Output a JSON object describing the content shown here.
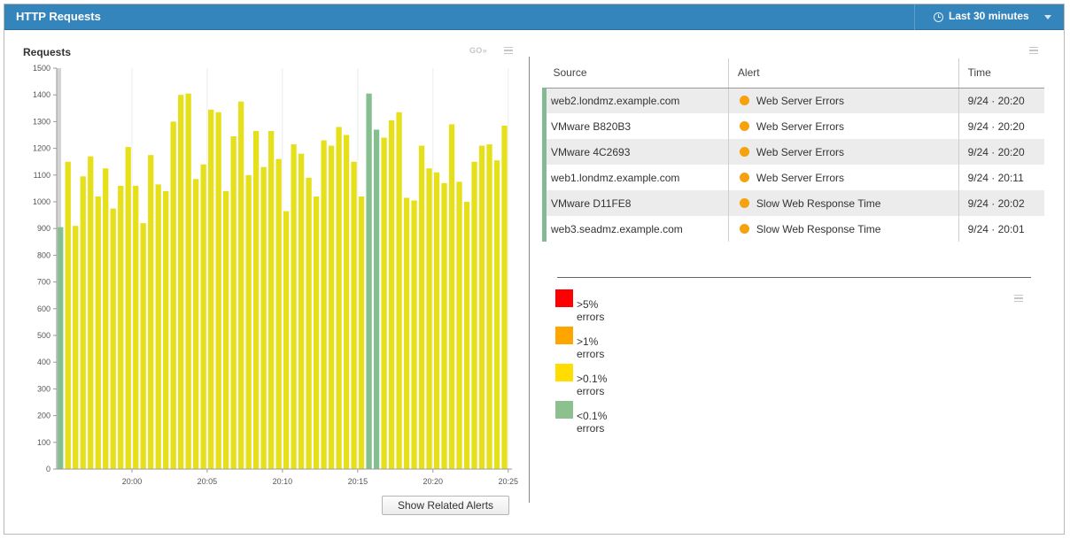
{
  "header": {
    "title": "HTTP Requests",
    "time_range": "Last 30 minutes",
    "clock_icon": "clock-icon",
    "caret_icon": "chevron-down-icon"
  },
  "chart_panel": {
    "title": "Requests",
    "go_label": "GO»",
    "related_alerts_button": "Show Related Alerts"
  },
  "chart_data": {
    "type": "bar",
    "title": "Requests",
    "xlabel": "",
    "ylabel": "",
    "ylim": [
      0,
      1500
    ],
    "y_ticks": [
      0,
      100,
      200,
      300,
      400,
      500,
      600,
      700,
      800,
      900,
      1000,
      1100,
      1200,
      1300,
      1400,
      1500
    ],
    "x_tick_labels": [
      "20:00",
      "20:05",
      "20:10",
      "20:15",
      "20:20",
      "20:25"
    ],
    "x_tick_minutes": [
      0,
      5,
      10,
      15,
      20,
      25
    ],
    "x_range_minutes": [
      -5,
      25.25
    ],
    "bar_minutes": [
      -4.75,
      -4.25,
      -3.75,
      -3.25,
      -2.75,
      -2.25,
      -1.75,
      -1.25,
      -0.75,
      -0.25,
      0.25,
      0.75,
      1.25,
      1.75,
      2.25,
      2.75,
      3.25,
      3.75,
      4.25,
      4.75,
      5.25,
      5.75,
      6.25,
      6.75,
      7.25,
      7.75,
      8.25,
      8.75,
      9.25,
      9.75,
      10.25,
      10.75,
      11.25,
      11.75,
      12.25,
      12.75,
      13.25,
      13.75,
      14.25,
      14.75,
      15.25,
      15.75,
      16.25,
      16.75,
      17.25,
      17.75,
      18.25,
      18.75,
      19.25,
      19.75,
      20.25,
      20.75,
      21.25,
      21.75,
      22.25,
      22.75,
      23.25,
      23.75,
      24.25,
      24.75
    ],
    "values": [
      905,
      1150,
      910,
      1095,
      1170,
      1020,
      1125,
      975,
      1060,
      1205,
      1060,
      920,
      1175,
      1065,
      1040,
      1300,
      1400,
      1405,
      1085,
      1140,
      1345,
      1335,
      1040,
      1245,
      1375,
      1100,
      1265,
      1130,
      1265,
      1160,
      965,
      1215,
      1180,
      1090,
      1020,
      1230,
      1210,
      1280,
      1250,
      1150,
      1020,
      1405,
      1270,
      1240,
      1305,
      1335,
      1015,
      1005,
      1210,
      1125,
      1110,
      1070,
      1290,
      1075,
      1000,
      1150,
      1210,
      1215,
      1155,
      1285
    ],
    "bar_status": [
      "low",
      "mid",
      "mid",
      "mid",
      "mid",
      "mid",
      "mid",
      "mid",
      "mid",
      "mid",
      "mid",
      "mid",
      "mid",
      "mid",
      "mid",
      "mid",
      "mid",
      "mid",
      "mid",
      "mid",
      "mid",
      "mid",
      "mid",
      "mid",
      "mid",
      "mid",
      "mid",
      "mid",
      "mid",
      "mid",
      "mid",
      "mid",
      "mid",
      "mid",
      "mid",
      "mid",
      "mid",
      "mid",
      "mid",
      "mid",
      "mid",
      "low",
      "low",
      "mid",
      "mid",
      "mid",
      "mid",
      "mid",
      "mid",
      "mid",
      "mid",
      "mid",
      "mid",
      "mid",
      "mid",
      "mid",
      "mid",
      "mid",
      "mid",
      "mid"
    ],
    "status_colors": {
      "low": "#86bf8f",
      "mid": "#e6e01a"
    },
    "no_data_band_color": "#d4d4d4",
    "grid": true,
    "grid_axis": "x"
  },
  "alerts_table": {
    "columns": [
      "Source",
      "Alert",
      "Time"
    ],
    "rows": [
      {
        "source": "web2.londmz.example.com",
        "alert": "Web Server Errors",
        "time": "9/24 · 20:20"
      },
      {
        "source": "VMware B820B3",
        "alert": "Web Server Errors",
        "time": "9/24 · 20:20"
      },
      {
        "source": "VMware 4C2693",
        "alert": "Web Server Errors",
        "time": "9/24 · 20:20"
      },
      {
        "source": "web1.londmz.example.com",
        "alert": "Web Server Errors",
        "time": "9/24 · 20:11"
      },
      {
        "source": "VMware D11FE8",
        "alert": "Slow Web Response Time",
        "time": "9/24 · 20:02"
      },
      {
        "source": "web3.seadmz.example.com",
        "alert": "Slow Web Response Time",
        "time": "9/24 · 20:01"
      }
    ],
    "severity_color": "#f5a20e",
    "row_marker_color": "#86b996"
  },
  "legend": {
    "items": [
      {
        "label": ">5% errors",
        "color": "#ff0000"
      },
      {
        "label": ">1% errors",
        "color": "#ffa500"
      },
      {
        "label": ">0.1% errors",
        "color": "#ffdd00"
      },
      {
        "label": "<0.1% errors",
        "color": "#8cc08e"
      }
    ]
  }
}
